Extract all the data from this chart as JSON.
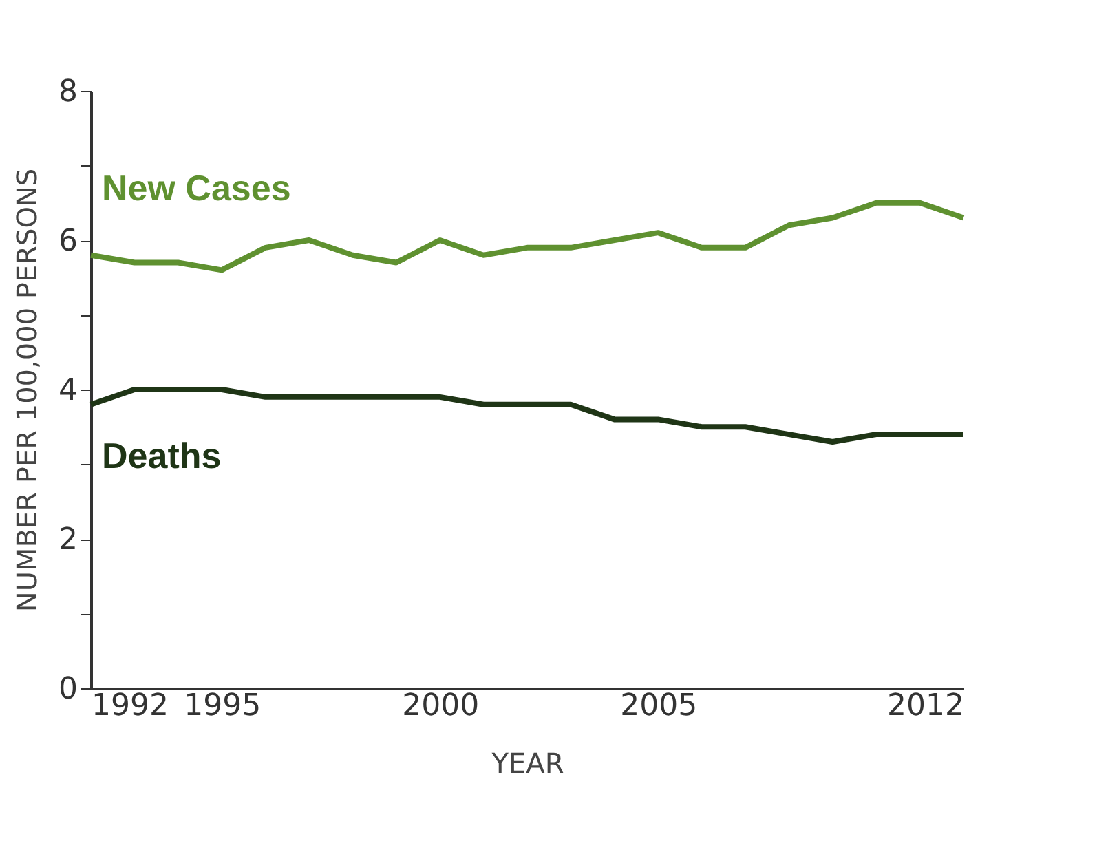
{
  "chart_data": {
    "type": "line",
    "xlabel": "YEAR",
    "ylabel": "NUMBER PER 100,000 PERSONS",
    "x": [
      1992,
      1993,
      1994,
      1995,
      1996,
      1997,
      1998,
      1999,
      2000,
      2001,
      2002,
      2003,
      2004,
      2005,
      2006,
      2007,
      2008,
      2009,
      2010,
      2011,
      2012
    ],
    "series": [
      {
        "name": "New Cases",
        "color": "#5f9130",
        "values": [
          5.8,
          5.7,
          5.7,
          5.6,
          5.9,
          6.0,
          5.8,
          5.7,
          6.0,
          5.8,
          5.9,
          5.9,
          6.0,
          6.1,
          5.9,
          5.9,
          6.2,
          6.3,
          6.5,
          6.5,
          6.3
        ]
      },
      {
        "name": "Deaths",
        "color": "#1f3516",
        "values": [
          3.8,
          4.0,
          4.0,
          4.0,
          3.9,
          3.9,
          3.9,
          3.9,
          3.9,
          3.8,
          3.8,
          3.8,
          3.6,
          3.6,
          3.5,
          3.5,
          3.4,
          3.3,
          3.4,
          3.4,
          3.4
        ]
      }
    ],
    "xlim": [
      1992,
      2012
    ],
    "xticks": [
      1992,
      1995,
      2000,
      2005,
      2012
    ],
    "ylim": [
      0,
      8
    ],
    "yticks": [
      0,
      {
        "value": 1,
        "label": null
      },
      2,
      {
        "value": 3,
        "label": null
      },
      4,
      {
        "value": 5,
        "label": null
      },
      6,
      {
        "value": 7,
        "label": null
      },
      8
    ],
    "grid": false,
    "line_style": "solid",
    "marker": "none"
  }
}
